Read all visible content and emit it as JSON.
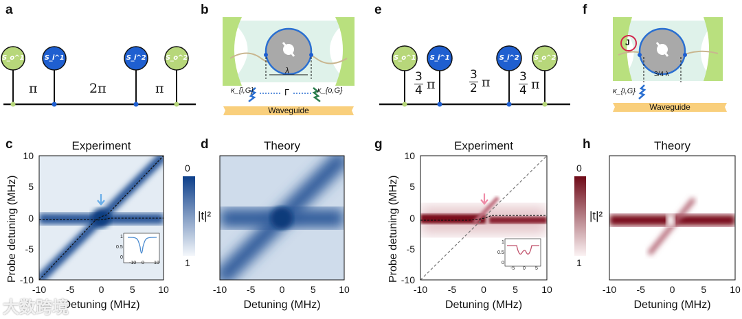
{
  "panel_labels": {
    "a": "a",
    "b": "b",
    "c": "c",
    "d": "d",
    "e": "e",
    "f": "f",
    "g": "g",
    "h": "h"
  },
  "diagram_a": {
    "nodes": [
      "S_o^1",
      "S_i^1",
      "S_i^2",
      "S_o^2"
    ],
    "phases": [
      "π",
      "2π",
      "π"
    ]
  },
  "diagram_e": {
    "nodes": [
      "S_o^1",
      "S_i^1",
      "S_i^2",
      "S_o^2"
    ],
    "phases": [
      {
        "num": "3",
        "den": "4"
      },
      {
        "num": "3",
        "den": "2"
      },
      {
        "num": "3",
        "den": "4"
      }
    ],
    "pi": "π"
  },
  "schematic_b": {
    "kappa_i": "κ_{i,G}",
    "kappa_o": "κ_{o,G}",
    "gamma": "Γ",
    "lambda": "λ",
    "waveguide": "Waveguide"
  },
  "schematic_f": {
    "kappa_i": "κ_{i,G}",
    "j": "J",
    "lambda": "3/4 λ",
    "waveguide": "Waveguide"
  },
  "colors": {
    "blue": "#0d3f8a",
    "red": "#7a0c1c",
    "node_green": "#b7d77a",
    "node_blue": "#1f5fd0"
  },
  "watermark": "大数跨境",
  "chart_data": [
    {
      "id": "c",
      "type": "heatmap",
      "title": "Experiment",
      "xlabel": "Detuning  (MHz)",
      "ylabel": "Probe detuning  (MHz)",
      "xlim": [
        -10,
        10
      ],
      "ylim": [
        -10,
        10
      ],
      "xticks": [
        "-10",
        "-5",
        "0",
        "5",
        "10"
      ],
      "yticks": [
        "10",
        "5",
        "0",
        "-5",
        "-10"
      ],
      "colorbar": {
        "label": "|t|²",
        "max_label": "0",
        "min_label": "1"
      },
      "inset": {
        "xticks": [
          "-10",
          "0",
          "10"
        ],
        "yticks": [
          "1",
          "0.5",
          "0"
        ]
      }
    },
    {
      "id": "d",
      "type": "heatmap",
      "title": "Theory",
      "xlabel": "Detuning  (MHz)",
      "xlim": [
        -10,
        10
      ],
      "ylim": [
        -10,
        10
      ],
      "xticks": [
        "-10",
        "-5",
        "0",
        "5",
        "10"
      ]
    },
    {
      "id": "g",
      "type": "heatmap",
      "title": "Experiment",
      "xlabel": "Detuning  (MHz)",
      "ylabel": "Probe detuning  (MHz)",
      "xlim": [
        -10,
        10
      ],
      "ylim": [
        -10,
        10
      ],
      "xticks": [
        "-10",
        "-5",
        "0",
        "5",
        "10"
      ],
      "yticks": [
        "10",
        "5",
        "0",
        "-5",
        "-10"
      ],
      "colorbar": {
        "label": "|t|²",
        "max_label": "0",
        "min_label": "1"
      },
      "inset": {
        "xticks": [
          "-5",
          "0",
          "5"
        ],
        "yticks": [
          "1",
          "0.5",
          "0"
        ]
      }
    },
    {
      "id": "h",
      "type": "heatmap",
      "title": "Theory",
      "xlabel": "Detuning  (MHz)",
      "xlim": [
        -10,
        10
      ],
      "ylim": [
        -10,
        10
      ],
      "xticks": [
        "-10",
        "-5",
        "0",
        "5",
        "10"
      ]
    }
  ]
}
